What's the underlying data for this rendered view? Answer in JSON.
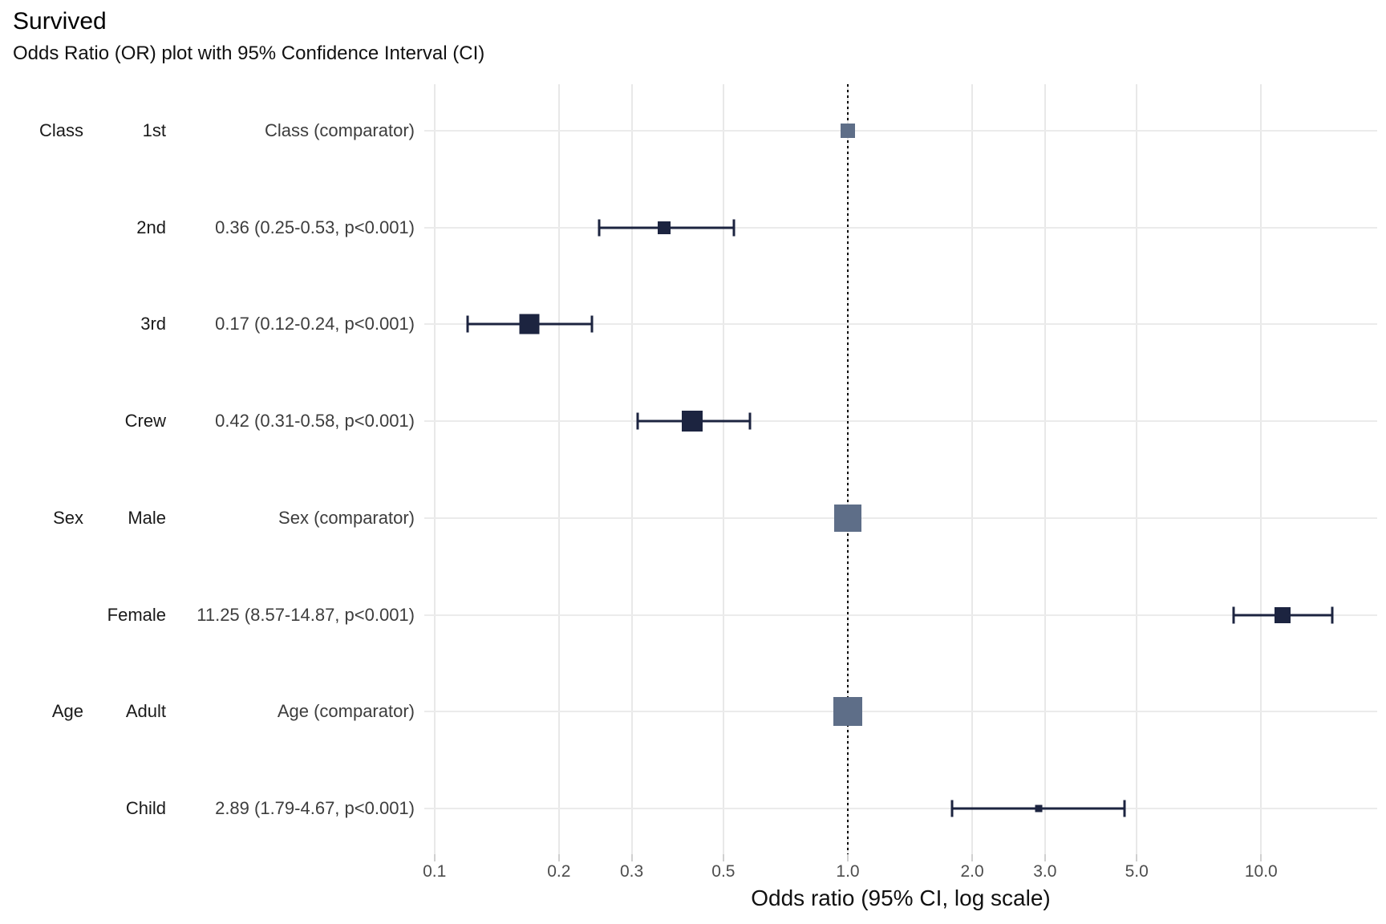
{
  "header": {
    "title": "Survived",
    "subtitle": "Odds Ratio (OR) plot with 95% Confidence Interval (CI)"
  },
  "colors": {
    "marker_navy": "#1c2440",
    "marker_comparator_slate": "#5e6e88",
    "gridline": "#e8e8e8",
    "reference_line": "#000000",
    "tick_label": "#4d4d4d",
    "row_label_text": "#1a1a1a",
    "estimate_text": "#3d3d3d",
    "background": "#ffffff"
  },
  "chart_data": {
    "type": "scatter",
    "subtype": "forest-plot-odds-ratio",
    "title": "Survived",
    "subtitle": "Odds Ratio (OR) plot with 95% Confidence Interval (CI)",
    "xlabel": "Odds ratio (95% CI, log scale)",
    "x_scale": "log10",
    "x_ticks": [
      0.1,
      0.2,
      0.3,
      0.5,
      1.0,
      2.0,
      3.0,
      5.0,
      10.0
    ],
    "x_tick_labels": [
      "0.1",
      "0.2",
      "0.3",
      "0.5",
      "1.0",
      "2.0",
      "3.0",
      "5.0",
      "10.0"
    ],
    "xlim": [
      0.0945,
      19.1
    ],
    "reference_line_x": 1.0,
    "grid": "major-only",
    "legend_position": "none",
    "rows": [
      {
        "group": "Class",
        "level": "1st",
        "estimate_label": "Class (comparator)",
        "or": 1.0,
        "ci_low": null,
        "ci_high": null,
        "comparator": true,
        "marker_size": 18
      },
      {
        "group": "",
        "level": "2nd",
        "estimate_label": "0.36 (0.25-0.53, p<0.001)",
        "or": 0.36,
        "ci_low": 0.25,
        "ci_high": 0.53,
        "comparator": false,
        "marker_size": 16
      },
      {
        "group": "",
        "level": "3rd",
        "estimate_label": "0.17 (0.12-0.24, p<0.001)",
        "or": 0.17,
        "ci_low": 0.12,
        "ci_high": 0.24,
        "comparator": false,
        "marker_size": 25
      },
      {
        "group": "",
        "level": "Crew",
        "estimate_label": "0.42 (0.31-0.58, p<0.001)",
        "or": 0.42,
        "ci_low": 0.31,
        "ci_high": 0.58,
        "comparator": false,
        "marker_size": 26
      },
      {
        "group": "Sex",
        "level": "Male",
        "estimate_label": "Sex (comparator)",
        "or": 1.0,
        "ci_low": null,
        "ci_high": null,
        "comparator": true,
        "marker_size": 34
      },
      {
        "group": "",
        "level": "Female",
        "estimate_label": "11.25 (8.57-14.87, p<0.001)",
        "or": 11.25,
        "ci_low": 8.57,
        "ci_high": 14.87,
        "comparator": false,
        "marker_size": 20
      },
      {
        "group": "Age",
        "level": "Adult",
        "estimate_label": "Age (comparator)",
        "or": 1.0,
        "ci_low": null,
        "ci_high": null,
        "comparator": true,
        "marker_size": 36
      },
      {
        "group": "",
        "level": "Child",
        "estimate_label": "2.89 (1.79-4.67, p<0.001)",
        "or": 2.89,
        "ci_low": 1.79,
        "ci_high": 4.67,
        "comparator": false,
        "marker_size": 9
      }
    ]
  }
}
